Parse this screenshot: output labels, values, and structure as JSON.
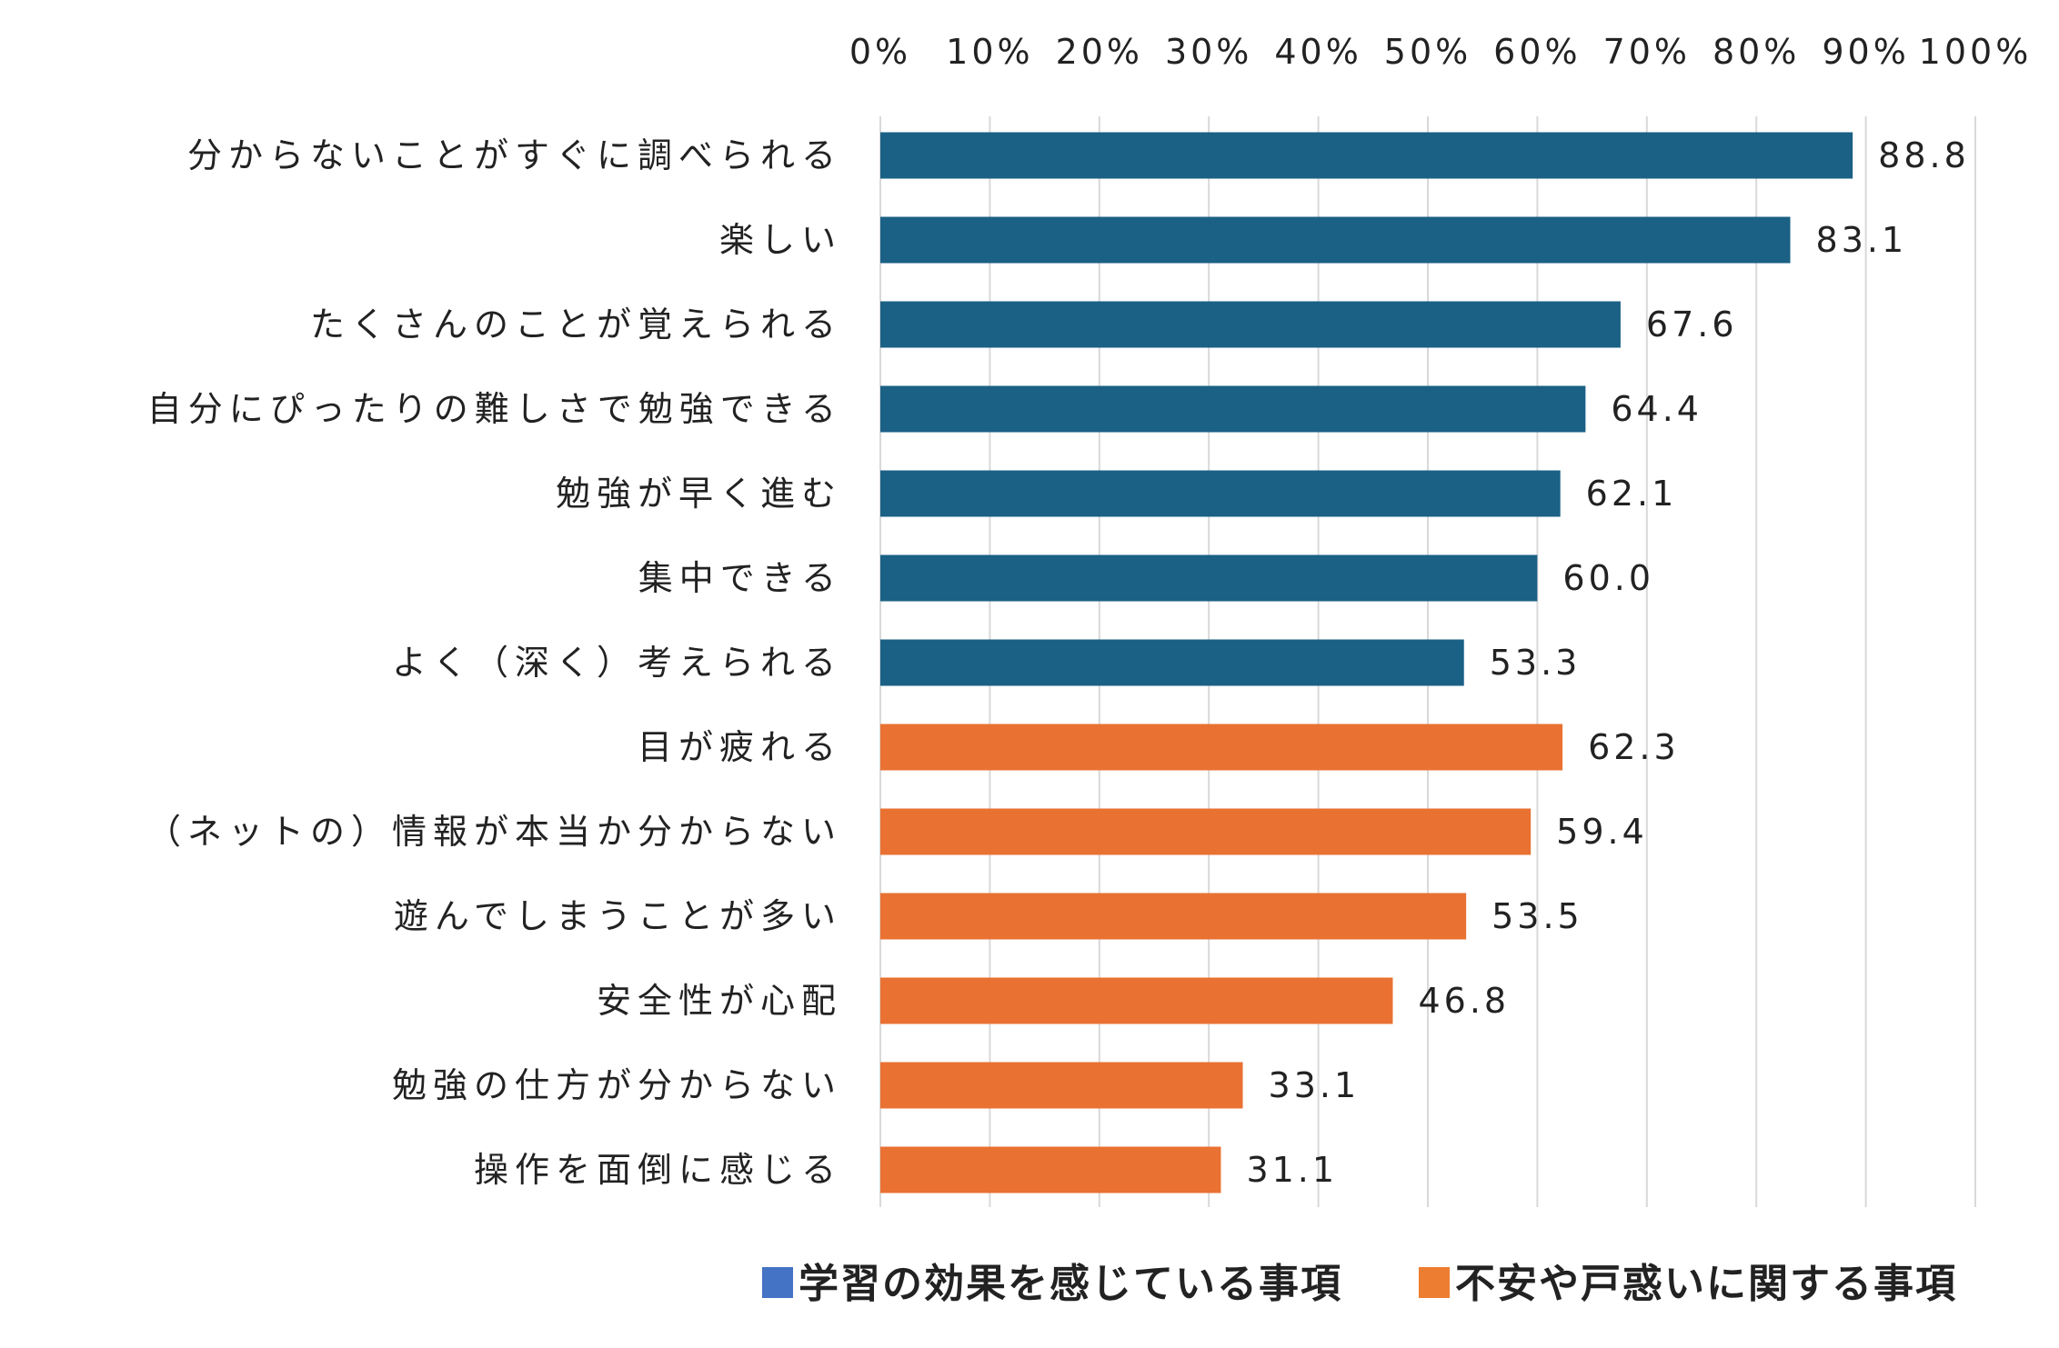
{
  "chart_data": {
    "type": "bar",
    "orientation": "horizontal",
    "xlim": [
      0,
      100
    ],
    "xticks": [
      "0%",
      "10%",
      "20%",
      "30%",
      "40%",
      "50%",
      "60%",
      "70%",
      "80%",
      "90%",
      "100%"
    ],
    "grid": true,
    "legend_position": "bottom",
    "series": [
      {
        "name": "学習の効果を感じている事項",
        "legend_color": "#4472C4",
        "bar_color": "#1B6085",
        "categories": [
          "分からないことがすぐに調べられる",
          "楽しい",
          "たくさんのことが覚えられる",
          "自分にぴったりの難しさで勉強できる",
          "勉強が早く進む",
          "集中できる",
          "よく（深く）考えられる"
        ],
        "values": [
          88.8,
          83.1,
          67.6,
          64.4,
          62.1,
          60.0,
          53.3
        ],
        "labels": [
          "88.8",
          "83.1",
          "67.6",
          "64.4",
          "62.1",
          "60.0",
          "53.3"
        ]
      },
      {
        "name": "不安や戸惑いに関する事項",
        "legend_color": "#ED7D31",
        "bar_color": "#E97132",
        "categories": [
          "目が疲れる",
          "（ネットの）情報が本当か分からない",
          "遊んでしまうことが多い",
          "安全性が心配",
          "勉強の仕方が分からない",
          "操作を面倒に感じる"
        ],
        "values": [
          62.3,
          59.4,
          53.5,
          46.8,
          33.1,
          31.1
        ],
        "labels": [
          "62.3",
          "59.4",
          "53.5",
          "46.8",
          "33.1",
          "31.1"
        ]
      }
    ]
  }
}
